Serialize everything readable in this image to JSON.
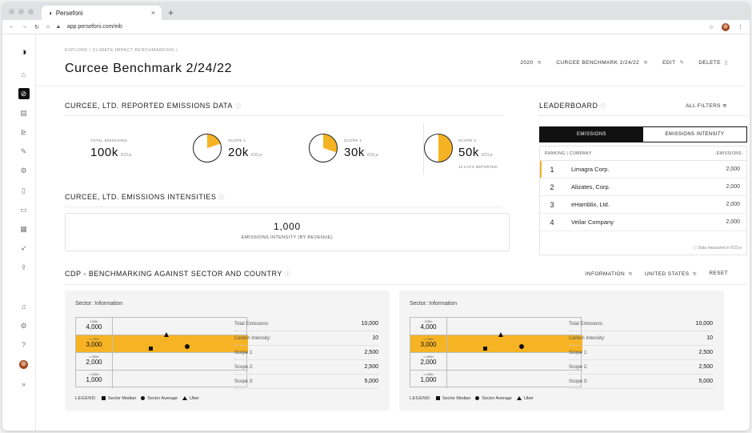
{
  "browser": {
    "tab_title": "Persefoni",
    "tab_close": "×",
    "new_tab": "+",
    "url": "app.persefoni.com/eib"
  },
  "header": {
    "breadcrumb": "EXPLORE / CLIMATE IMPACT BENCHMARKING /",
    "title": "Curcee Benchmark 2/24/22",
    "actions": {
      "year": "2020",
      "benchmark": "CURCEE BENCHMARK 2/24/22",
      "edit": "EDIT",
      "delete": "DELETE"
    }
  },
  "emissions": {
    "title": "CURCEE, LTD. REPORTED EMISSIONS DATA",
    "total": {
      "label": "TOTAL EMISSIONS",
      "value": "100k",
      "unit": "tCO₂e"
    },
    "scope1": {
      "label": "SCOPE 1",
      "value": "20k",
      "unit": "tCO₂e",
      "share": 0.2
    },
    "scope2": {
      "label": "SCOPE 2",
      "value": "30k",
      "unit": "tCO₂e",
      "share": 0.3
    },
    "scope3": {
      "label": "SCOPE 3",
      "value": "50k",
      "unit": "tCO₂e",
      "share": 0.5,
      "note": "10 CATS REPORTED"
    }
  },
  "intensities": {
    "title": "CURCEE, LTD. EMISSIONS INTENSITIES",
    "value": "1,000",
    "label": "EMISSIONS INTENSITY (BY REVENUE)"
  },
  "leaderboard": {
    "title": "LEADERBOARD",
    "all_filters": "ALL FILTERS",
    "tabs": [
      "EMISSIONS",
      "EMISSIONS INTENSITY"
    ],
    "col_left": "RANKING | COMPANY",
    "col_right": "EMISSIONS",
    "rows": [
      {
        "rank": "1",
        "company": "Limagra Corp.",
        "emissions": "2,000"
      },
      {
        "rank": "2",
        "company": "Alizates, Corp.",
        "emissions": "2,000"
      },
      {
        "rank": "3",
        "company": "eHamblix, Ltd.",
        "emissions": "2,000"
      },
      {
        "rank": "4",
        "company": "Veilar Company",
        "emissions": "2,000"
      }
    ],
    "footnote": "Data measured in tCO₂e"
  },
  "cdp": {
    "title": "CDP - BENCHMARKING AGAINST SECTOR AND COUNTRY",
    "filters": {
      "sector": "INFORMATION",
      "country": "UNITED STATES",
      "reset": "RESET"
    },
    "cards": [
      {
        "title": "Sector: Information",
        "rows": [
          {
            "pct": "100th",
            "val": "4,000"
          },
          {
            "pct": "<=75th",
            "val": "3,000"
          },
          {
            "pct": "<=50th",
            "val": "2,000"
          },
          {
            "pct": "<=25th",
            "val": "1,000"
          }
        ],
        "stats": [
          {
            "label": "Total Emissions:",
            "value": "10,000"
          },
          {
            "label": "Carbon Intensity:",
            "value": "10"
          },
          {
            "label": "Scope 1:",
            "value": "2,500"
          },
          {
            "label": "Scope 2:",
            "value": "2,500"
          },
          {
            "label": "Scope 3:",
            "value": "5,000"
          }
        ]
      },
      {
        "title": "Sector: Information",
        "rows": [
          {
            "pct": "100th",
            "val": "4,000"
          },
          {
            "pct": "<=75th",
            "val": "3,000"
          },
          {
            "pct": "<=50th",
            "val": "2,000"
          },
          {
            "pct": "<=25th",
            "val": "1,000"
          }
        ],
        "stats": [
          {
            "label": "Total Emissions:",
            "value": "10,000"
          },
          {
            "label": "Carbon Intensity:",
            "value": "10"
          },
          {
            "label": "Scope 1:",
            "value": "2,500"
          },
          {
            "label": "Scope 2:",
            "value": "2,500"
          },
          {
            "label": "Scope 3:",
            "value": "5,000"
          }
        ]
      }
    ],
    "legend": {
      "key": "LEGEND:",
      "median": "Sector Median",
      "average": "Sector Average",
      "uber": "Uber"
    }
  },
  "colors": {
    "accent": "#f5b324",
    "dark": "#111111"
  }
}
